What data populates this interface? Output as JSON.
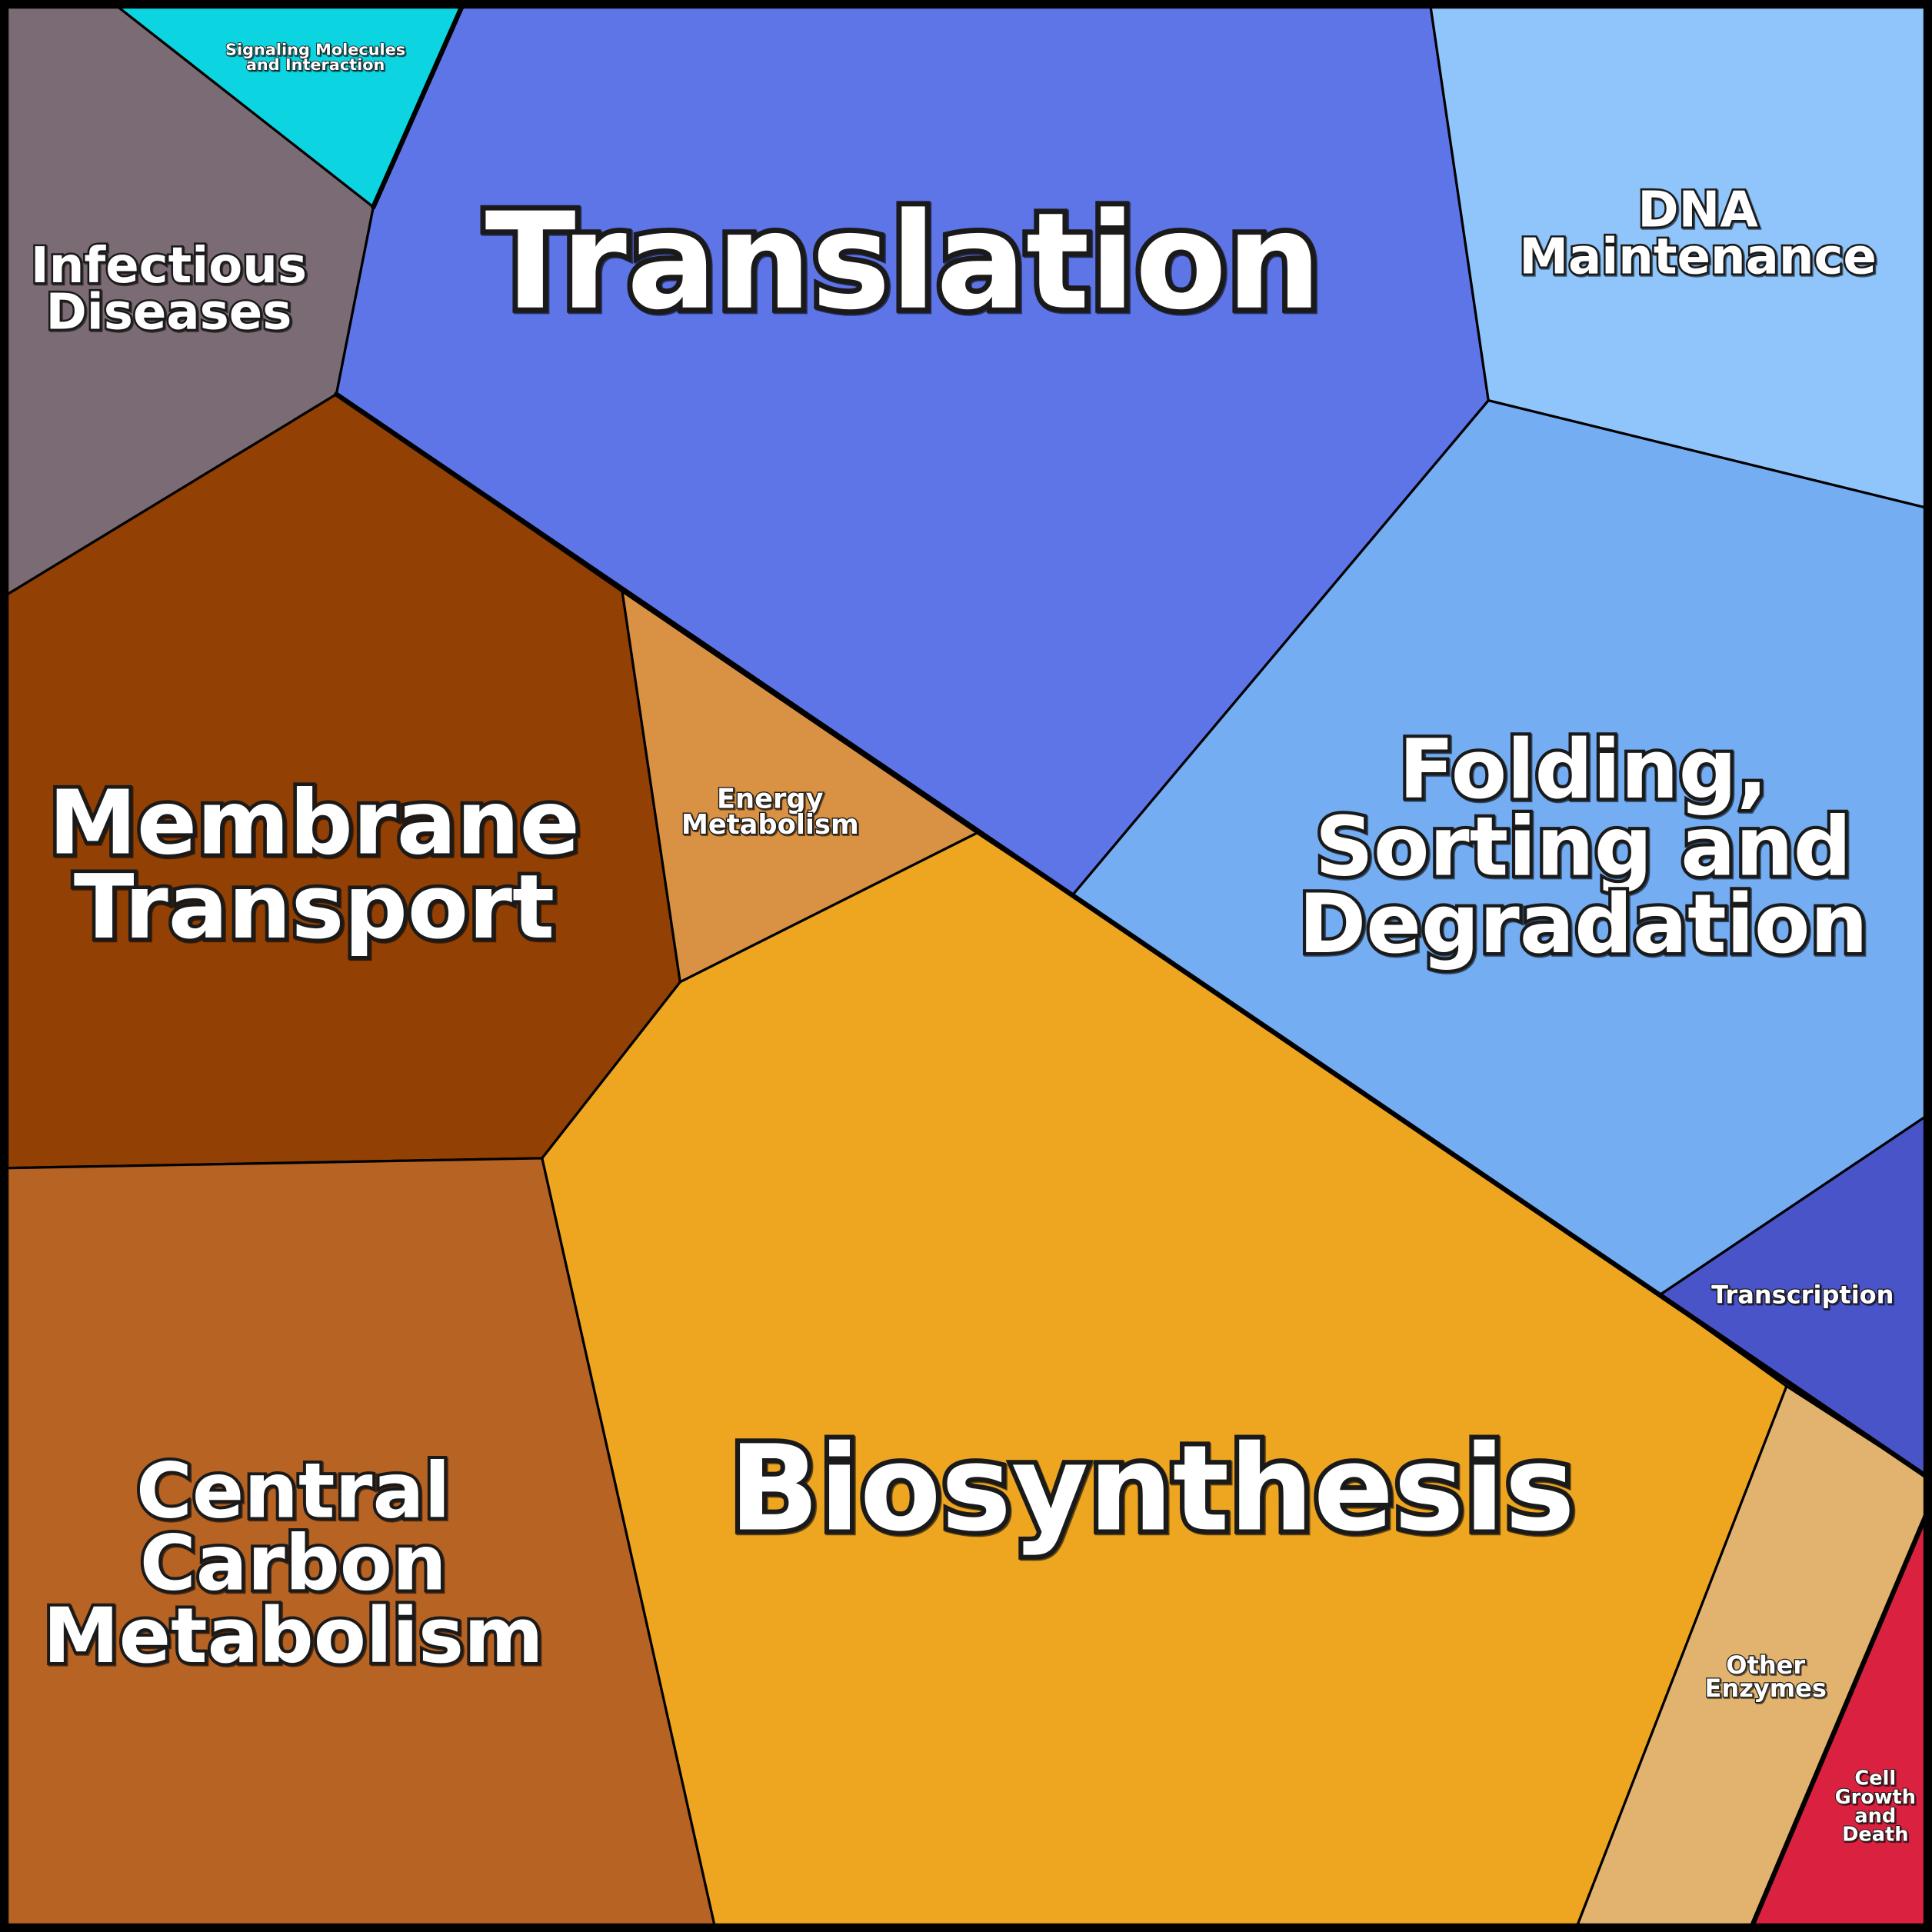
{
  "cells": [
    {
      "label": [
        "Translation"
      ]
    },
    {
      "label": [
        "DNA",
        "Maintenance"
      ]
    },
    {
      "label": [
        "Infectious",
        "Diseases"
      ]
    },
    {
      "label": [
        "Signaling Molecules",
        "and Interaction"
      ]
    },
    {
      "label": [
        "Membrane",
        "Transport"
      ]
    },
    {
      "label": [
        "Energy",
        "Metabolism"
      ]
    },
    {
      "label": [
        "Folding,",
        "Sorting and",
        "Degradation"
      ]
    },
    {
      "label": [
        "Transcription"
      ]
    },
    {
      "label": [
        "Central",
        "Carbon",
        "Metabolism"
      ]
    },
    {
      "label": [
        "Biosynthesis"
      ]
    },
    {
      "label": [
        "Other",
        "Enzymes"
      ]
    },
    {
      "label": [
        "Cell",
        "Growth",
        "and",
        "Death"
      ]
    }
  ]
}
